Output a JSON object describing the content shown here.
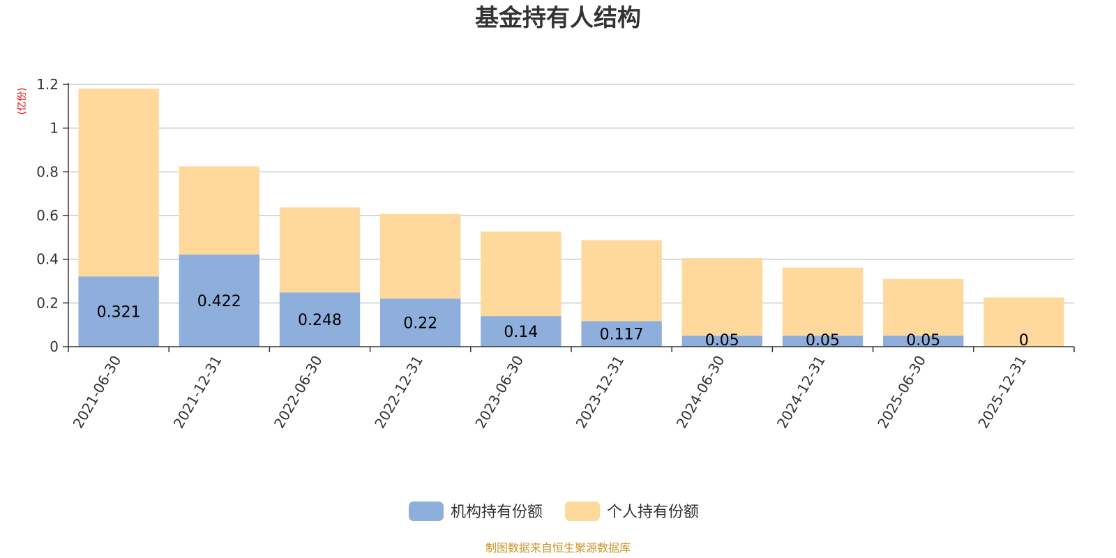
{
  "chart_data": {
    "type": "bar",
    "stacked": true,
    "title": "基金持有人结构",
    "unit_label": "(亿份)",
    "categories": [
      "2021-06-30",
      "2021-12-31",
      "2022-06-30",
      "2022-12-31",
      "2023-06-30",
      "2023-12-31",
      "2024-06-30",
      "2024-12-31",
      "2025-06-30",
      "2025-12-31"
    ],
    "series": [
      {
        "name": "机构持有份额",
        "color": "#8eaedb",
        "values": [
          0.321,
          0.422,
          0.248,
          0.22,
          0.14,
          0.117,
          0.05,
          0.05,
          0.05,
          0
        ],
        "labels": [
          "0.321",
          "0.422",
          "0.248",
          "0.22",
          "0.14",
          "0.117",
          "0.05",
          "0.05",
          "0.05",
          "0"
        ]
      },
      {
        "name": "个人持有份额",
        "color": "#fed99b",
        "values": [
          0.86,
          0.403,
          0.389,
          0.387,
          0.387,
          0.37,
          0.355,
          0.312,
          0.26,
          0.225
        ]
      }
    ],
    "yticks": [
      "0",
      "0.2",
      "0.4",
      "0.6",
      "0.8",
      "1",
      "1.2"
    ],
    "ylim": [
      0,
      1.2
    ],
    "grid": true,
    "legend_position": "bottom-center"
  },
  "source_note": "制图数据来自恒生聚源数据库"
}
